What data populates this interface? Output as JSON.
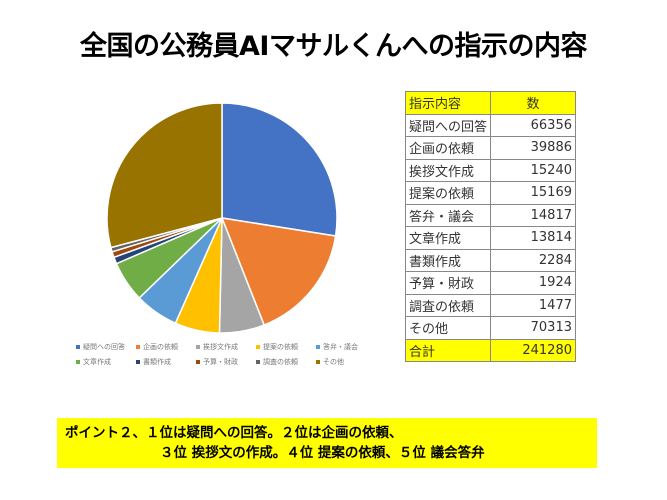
{
  "title": "全国の公務員AIマサルくんへの指示の内容",
  "chart_data": {
    "type": "pie",
    "title": "",
    "legend_placement": "bottom",
    "categories": [
      "疑問への回答",
      "企画の依頼",
      "挨拶文作成",
      "提案の依頼",
      "答弁・議会",
      "文章作成",
      "書類作成",
      "予算・財政",
      "調査の依頼",
      "その他"
    ],
    "values": [
      66356,
      39886,
      15240,
      15169,
      14817,
      13814,
      2284,
      1924,
      1477,
      70313
    ],
    "colors": [
      "#4472C4",
      "#ED7D31",
      "#A5A5A5",
      "#FFC000",
      "#5B9BD5",
      "#70AD47",
      "#264478",
      "#9E480E",
      "#636363",
      "#997300"
    ]
  },
  "legend_items": [
    "疑問への回答",
    "企画の依頼",
    "挨拶文作成",
    "提案の依頼",
    "答弁・議会",
    "文章作成",
    "書類作成",
    "予算・財政",
    "調査の依頼",
    "その他"
  ],
  "table": {
    "header": {
      "name": "指示内容",
      "value": "数"
    },
    "rows": [
      {
        "name": "疑問への回答",
        "value": "66356"
      },
      {
        "name": "企画の依頼",
        "value": "39886"
      },
      {
        "name": "挨拶文作成",
        "value": "15240"
      },
      {
        "name": "提案の依頼",
        "value": "15169"
      },
      {
        "name": "答弁・議会",
        "value": "14817"
      },
      {
        "name": "文章作成",
        "value": "13814"
      },
      {
        "name": "書類作成",
        "value": "2284"
      },
      {
        "name": "予算・財政",
        "value": "1924"
      },
      {
        "name": "調査の依頼",
        "value": "1477"
      },
      {
        "name": "その他",
        "value": "70313"
      }
    ],
    "total": {
      "name": "合計",
      "value": "241280"
    }
  },
  "note": {
    "line1": "ポイント２、１位は疑問への回答。２位は企画の依頼、",
    "line2": "３位 挨拶文の作成。４位 提案の依頼、５位 議会答弁"
  }
}
